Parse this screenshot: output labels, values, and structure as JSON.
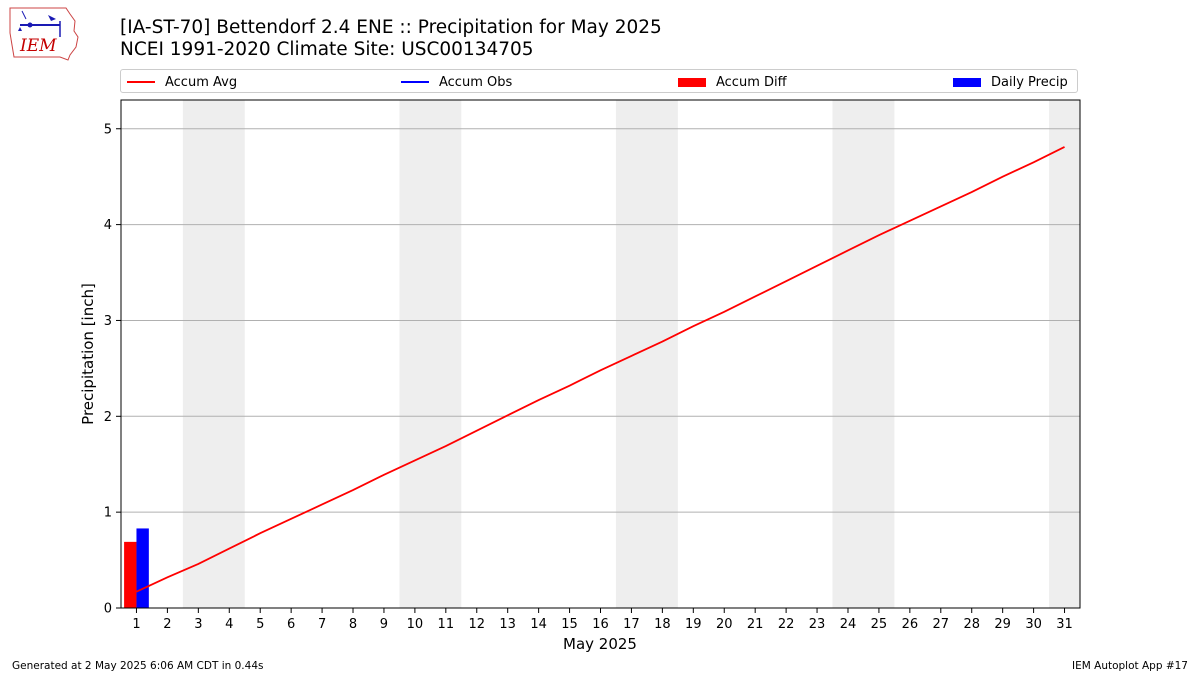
{
  "header": {
    "title_line1": "[IA-ST-70] Bettendorf 2.4 ENE :: Precipitation for May 2025",
    "title_line2": "NCEI 1991-2020 Climate Site: USC00134705",
    "logo_text": "IEM"
  },
  "legend": {
    "placement": "top",
    "items": [
      {
        "label": "Accum Avg",
        "color": "#ff0000",
        "kind": "line"
      },
      {
        "label": "Accum Obs",
        "color": "#0000ff",
        "kind": "line"
      },
      {
        "label": "Accum Diff",
        "color": "#ff0000",
        "kind": "bar"
      },
      {
        "label": "Daily Precip",
        "color": "#0000ff",
        "kind": "bar"
      }
    ]
  },
  "footer": {
    "generated": "Generated at 2 May 2025 6:06 AM CDT in 0.44s",
    "app": "IEM Autoplot App #17"
  },
  "chart_data": {
    "type": "line",
    "xlabel": "May 2025",
    "ylabel": "Precipitation [inch]",
    "x": [
      1,
      2,
      3,
      4,
      5,
      6,
      7,
      8,
      9,
      10,
      11,
      12,
      13,
      14,
      15,
      16,
      17,
      18,
      19,
      20,
      21,
      22,
      23,
      24,
      25,
      26,
      27,
      28,
      29,
      30,
      31
    ],
    "xlim": [
      0.5,
      31.5
    ],
    "ylim": [
      0,
      5.3
    ],
    "yticks": [
      0,
      1,
      2,
      3,
      4,
      5
    ],
    "grid": "y",
    "weekend_shading": [
      [
        2.5,
        4.5
      ],
      [
        9.5,
        11.5
      ],
      [
        16.5,
        18.5
      ],
      [
        23.5,
        25.5
      ],
      [
        30.5,
        31.5
      ]
    ],
    "shade_color": "#eeeeee",
    "series": [
      {
        "name": "Accum Avg",
        "type": "line",
        "color": "#ff0000",
        "x": [
          1,
          2,
          3,
          4,
          5,
          6,
          7,
          8,
          9,
          10,
          11,
          12,
          13,
          14,
          15,
          16,
          17,
          18,
          19,
          20,
          21,
          22,
          23,
          24,
          25,
          26,
          27,
          28,
          29,
          30,
          31
        ],
        "values": [
          0.17,
          0.32,
          0.46,
          0.62,
          0.78,
          0.93,
          1.08,
          1.23,
          1.39,
          1.54,
          1.69,
          1.85,
          2.01,
          2.17,
          2.32,
          2.48,
          2.63,
          2.78,
          2.94,
          3.09,
          3.25,
          3.41,
          3.57,
          3.73,
          3.89,
          4.04,
          4.19,
          4.34,
          4.5,
          4.65,
          4.81
        ]
      },
      {
        "name": "Accum Diff",
        "type": "bar",
        "color": "#ff0000",
        "x": [
          1
        ],
        "values": [
          0.69
        ]
      },
      {
        "name": "Daily Precip",
        "type": "bar",
        "color": "#0000ff",
        "x": [
          1
        ],
        "values": [
          0.83
        ]
      }
    ]
  }
}
